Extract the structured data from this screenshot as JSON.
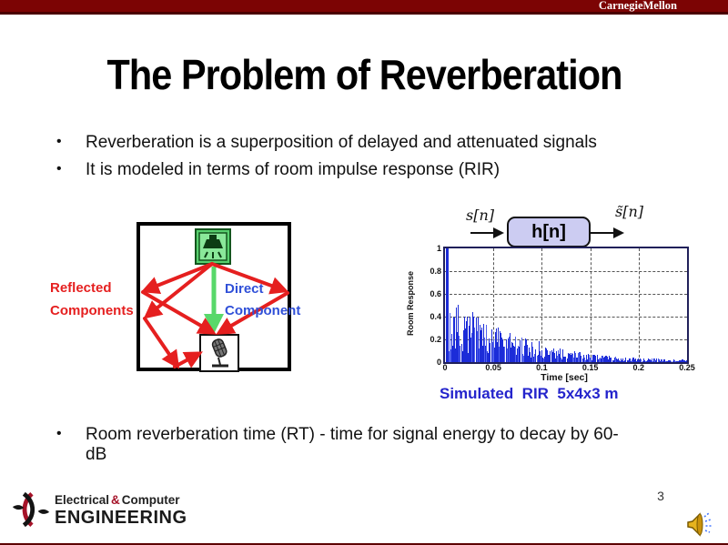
{
  "header": {
    "brand": "CarnegieMellon"
  },
  "slide": {
    "title": "The Problem of Reverberation",
    "page_number": "3",
    "bullet_char": "•"
  },
  "bullets": [
    "Reverberation is a superposition of delayed and attenuated signals",
    "It is modeled in terms of room impulse response (RIR)"
  ],
  "bottom_bullet": "Room reverberation time (RT) - time for signal energy to decay by 60-\ndB",
  "room_diagram": {
    "reflected_line1": "Reflected",
    "reflected_line2": "Components",
    "direct_line1": "Direct",
    "direct_line2": "Component"
  },
  "block_diagram": {
    "input_label": "s[n]",
    "system_label": "h[n]",
    "output_label": "s̃[n]"
  },
  "caption": "Simulated  RIR  5x4x3 m",
  "chart_data": {
    "type": "bar",
    "title": "Simulated room impulse response (RIR) for a 5x4x3 m room",
    "xlabel": "Time [sec]",
    "ylabel": "Room Response",
    "xlim": [
      0,
      0.25
    ],
    "ylim": [
      0,
      1
    ],
    "xticks": [
      0,
      0.05,
      0.1,
      0.15,
      0.2,
      0.25
    ],
    "xtick_labels": [
      "0",
      "0.05",
      "0.1",
      "0.15",
      "0.2",
      "0.25"
    ],
    "yticks": [
      0,
      0.2,
      0.4,
      0.6,
      0.8,
      1
    ],
    "ytick_labels": [
      "0",
      "0.2",
      "0.4",
      "0.6",
      "0.8",
      "1"
    ],
    "grid": "dashed",
    "legend": "none",
    "direct_impulse": {
      "t": 0.002,
      "amplitude": 1.0
    },
    "envelope": [
      [
        0.0,
        1.0
      ],
      [
        0.006,
        0.6
      ],
      [
        0.012,
        0.55
      ],
      [
        0.02,
        0.42
      ],
      [
        0.04,
        0.38
      ],
      [
        0.06,
        0.28
      ],
      [
        0.08,
        0.22
      ],
      [
        0.1,
        0.16
      ],
      [
        0.13,
        0.1
      ],
      [
        0.16,
        0.06
      ],
      [
        0.2,
        0.035
      ],
      [
        0.25,
        0.02
      ]
    ],
    "num_spikes": 250,
    "seed": 7,
    "description": "Dense stem plot: direct-path impulse of amplitude 1.0 at t≈0, early reflections ≈0.5 near 0.01–0.02 s, exponentially decaying dense tail reaching ≈0.02 by 0.25 s"
  },
  "colors": {
    "brand_bar": "#7c0404",
    "reflected_red": "#e51f1f",
    "direct_blue": "#3050d8",
    "caption_blue": "#2424cc",
    "bar_blue": "#1c2cd8",
    "bar_blue_light": "#5060ee",
    "green_arrow": "#58d86a",
    "grid_gray": "#555555"
  },
  "icons": {
    "loudspeaker": "ceiling-loudspeaker-in-green-box",
    "microphone": "studio-microphone-in-white-box",
    "audio": "gold-speaker-with-blue-sound-waves",
    "ece_logo": "cmu-ece-crescent-mark"
  },
  "footer": {
    "logo_text_1a": "Electrical",
    "logo_amp": "&",
    "logo_text_1b": "Computer",
    "logo_text_2": "ENGINEERING"
  }
}
